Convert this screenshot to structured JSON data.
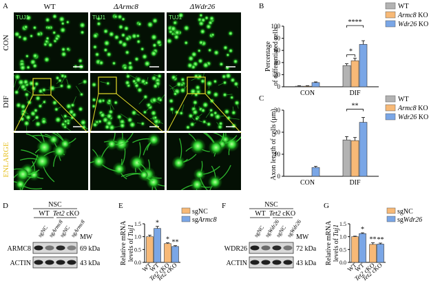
{
  "panel_letters": {
    "A": "A",
    "B": "B",
    "C": "C",
    "D": "D",
    "E": "E",
    "F": "F",
    "G": "G"
  },
  "panel_a": {
    "column_headers": [
      "WT",
      "ΔArmc8",
      "ΔWdr26"
    ],
    "row_labels": [
      "CON",
      "DIF",
      "ENLARGE"
    ],
    "tile_labels": [
      "TUJ1",
      "TUJ1",
      "TUJ1"
    ],
    "colors": {
      "green": "#2ecc2e",
      "background": "#041004",
      "zoom_box": "#e6e02a",
      "enlarge_label": "#e6c020"
    }
  },
  "legend": {
    "items": [
      "WT",
      "Armc8 KO",
      "Wdr26 KO"
    ],
    "colors": [
      "#b3b3b3",
      "#f7b977",
      "#7aa6e6"
    ]
  },
  "chart_data": [
    {
      "type": "bar",
      "panel": "B",
      "ylabel_lines": [
        "Percentage",
        "of differentiated cells"
      ],
      "categories": [
        "CON",
        "DIF"
      ],
      "ylim": [
        0,
        100
      ],
      "yticks": [
        0,
        20,
        40,
        60,
        80,
        100
      ],
      "series": [
        {
          "name": "WT",
          "values": [
            1,
            35
          ],
          "errors": [
            0.6,
            3
          ]
        },
        {
          "name": "Armc8 KO",
          "values": [
            1,
            43
          ],
          "errors": [
            0.6,
            4
          ]
        },
        {
          "name": "Wdr26 KO",
          "values": [
            7,
            70
          ],
          "errors": [
            1,
            6
          ]
        }
      ],
      "significance": [
        {
          "label": "*",
          "from_series": 0,
          "to_series": 1,
          "category": 1
        },
        {
          "label": "****",
          "from_series": 0,
          "to_series": 2,
          "category": 1
        }
      ]
    },
    {
      "type": "bar",
      "panel": "C",
      "ylabel": "Axon length of cells (μm)",
      "categories": [
        "CON",
        "DIF"
      ],
      "ylim": [
        0,
        30
      ],
      "yticks": [
        0,
        10,
        20,
        30
      ],
      "series": [
        {
          "name": "WT",
          "values": [
            0,
            16.5
          ],
          "errors": [
            0,
            1.5
          ]
        },
        {
          "name": "Armc8 KO",
          "values": [
            0,
            16.2
          ],
          "errors": [
            0,
            1.4
          ]
        },
        {
          "name": "Wdr26 KO",
          "values": [
            4,
            24.5
          ],
          "errors": [
            0.5,
            2.2
          ]
        }
      ],
      "significance": [
        {
          "label": "**",
          "from_series": 0,
          "to_series": 2,
          "category": 1
        }
      ]
    },
    {
      "type": "bar",
      "panel": "E",
      "ylabel_lines": [
        "Relative mRNA",
        "levels of Tuj1"
      ],
      "categories": [
        "WT",
        "Tet2 cKO"
      ],
      "ylim": [
        0,
        1.5
      ],
      "yticks": [
        0.0,
        0.5,
        1.0,
        1.5
      ],
      "series": [
        {
          "name": "sgNC",
          "values": [
            1.0,
            0.73
          ],
          "errors": [
            0.06,
            0.03
          ]
        },
        {
          "name": "sgArmc8",
          "values": [
            1.32,
            0.62
          ],
          "errors": [
            0.08,
            0.03
          ]
        }
      ],
      "star_labels": [
        [
          "",
          "*"
        ],
        [
          "*",
          "**"
        ]
      ],
      "legend_colors": [
        "#f7b977",
        "#7aa6e6"
      ]
    },
    {
      "type": "bar",
      "panel": "G",
      "ylabel_lines": [
        "Relative mRNA",
        "levels of Tuj1"
      ],
      "categories": [
        "WT",
        "Tet2 cKO"
      ],
      "ylim": [
        0,
        1.5
      ],
      "yticks": [
        0.0,
        0.5,
        1.0,
        1.5
      ],
      "series": [
        {
          "name": "sgNC",
          "values": [
            1.0,
            0.7
          ],
          "errors": [
            0.02,
            0.06
          ]
        },
        {
          "name": "sgWdr26",
          "values": [
            1.12,
            0.71
          ],
          "errors": [
            0.03,
            0.04
          ]
        }
      ],
      "star_labels": [
        [
          "",
          "**"
        ],
        [
          "*",
          "**"
        ]
      ],
      "legend_colors": [
        "#f7b977",
        "#7aa6e6"
      ]
    }
  ],
  "panel_d": {
    "header": "NSC",
    "groups": [
      "WT",
      "Tet2 cKO"
    ],
    "lanes": [
      "sgNC",
      "sgArmc8",
      "sgNC",
      "sgArmc8"
    ],
    "mw_label": "MW",
    "bands": [
      {
        "protein": "ARMC8",
        "mw": "69 kDa",
        "intensity": [
          0.95,
          0.55,
          0.9,
          0.5
        ]
      },
      {
        "protein": "ACTIN",
        "mw": "43 kDa",
        "intensity": [
          0.95,
          0.95,
          0.95,
          0.95
        ]
      }
    ]
  },
  "panel_f": {
    "header": "NSC",
    "groups": [
      "WT",
      "Tet2 cKO"
    ],
    "lanes": [
      "sgNC",
      "sgWdr26",
      "sgNC",
      "sgWdr26"
    ],
    "mw_label": "MW",
    "bands": [
      {
        "protein": "WDR26",
        "mw": "72 kDa",
        "intensity": [
          0.95,
          0.6,
          0.9,
          0.55
        ]
      },
      {
        "protein": "ACTIN",
        "mw": "43 kDa",
        "intensity": [
          0.95,
          0.95,
          0.95,
          0.95
        ]
      }
    ]
  }
}
